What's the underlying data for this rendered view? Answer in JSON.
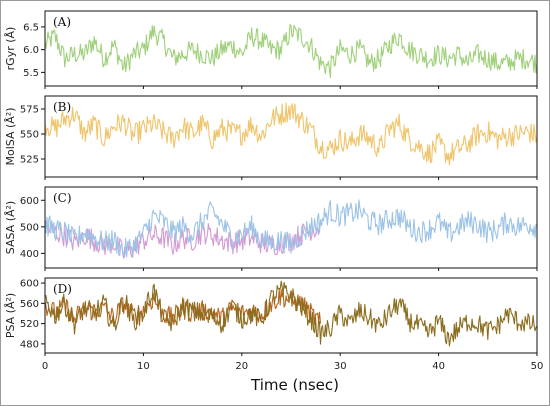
{
  "chart_data": [
    {
      "type": "line",
      "panel_label": "(A)",
      "ylabel": "rGyr (Å)",
      "yticks": [
        "5.5",
        "6.0",
        "6.5"
      ],
      "ylim": [
        5.2,
        6.85
      ],
      "xlim": [
        0,
        50
      ],
      "series": [
        {
          "color": "#9fd07a",
          "x": [
            0,
            1,
            2,
            3,
            4,
            5,
            6,
            7,
            8,
            9,
            10,
            11,
            12,
            13,
            14,
            15,
            16,
            17,
            18,
            19,
            20,
            21,
            22,
            23,
            24,
            25,
            26,
            27,
            28,
            29,
            30,
            31,
            32,
            33,
            34,
            35,
            36,
            37,
            38,
            39,
            40,
            41,
            42,
            43,
            44,
            45,
            46,
            47,
            48,
            49,
            50
          ],
          "y": [
            6.1,
            6.3,
            5.8,
            5.9,
            5.9,
            6.2,
            5.8,
            6.1,
            5.6,
            5.9,
            6.0,
            6.4,
            6.2,
            5.8,
            5.9,
            6.0,
            5.9,
            5.8,
            6.0,
            6.1,
            5.9,
            6.3,
            6.2,
            6.0,
            6.0,
            6.4,
            6.3,
            6.1,
            5.7,
            5.6,
            6.0,
            5.9,
            6.0,
            5.7,
            5.8,
            6.1,
            6.3,
            6.0,
            5.9,
            5.8,
            5.9,
            5.8,
            5.9,
            5.7,
            5.9,
            5.8,
            5.7,
            5.7,
            5.8,
            5.8,
            5.7
          ]
        }
      ]
    },
    {
      "type": "line",
      "panel_label": "(B)",
      "ylabel": "MolSA (Å²)",
      "yticks": [
        "525",
        "550",
        "575"
      ],
      "ylim": [
        507,
        588
      ],
      "xlim": [
        0,
        50
      ],
      "series": [
        {
          "color": "#f0c46a",
          "x": [
            0,
            1,
            2,
            3,
            4,
            5,
            6,
            7,
            8,
            9,
            10,
            11,
            12,
            13,
            14,
            15,
            16,
            17,
            18,
            19,
            20,
            21,
            22,
            23,
            24,
            25,
            26,
            27,
            28,
            29,
            30,
            31,
            32,
            33,
            34,
            35,
            36,
            37,
            38,
            39,
            40,
            41,
            42,
            43,
            44,
            45,
            46,
            47,
            48,
            49,
            50
          ],
          "y": [
            560,
            555,
            565,
            570,
            550,
            560,
            545,
            558,
            562,
            548,
            555,
            560,
            552,
            545,
            558,
            550,
            560,
            545,
            555,
            552,
            550,
            560,
            548,
            565,
            570,
            575,
            565,
            555,
            538,
            535,
            545,
            540,
            550,
            545,
            535,
            555,
            560,
            545,
            538,
            530,
            540,
            528,
            535,
            540,
            550,
            552,
            545,
            548,
            550,
            552,
            548
          ]
        }
      ]
    },
    {
      "type": "line",
      "panel_label": "(C)",
      "ylabel": "SASA (Å²)",
      "yticks": [
        "400",
        "500",
        "600"
      ],
      "ylim": [
        345,
        650
      ],
      "xlim": [
        0,
        50
      ],
      "series": [
        {
          "color": "#d49ad6",
          "x": [
            0,
            1,
            2,
            3,
            4,
            5,
            6,
            7,
            8,
            9,
            10,
            11,
            12,
            13,
            14,
            15,
            16,
            17,
            18,
            19,
            20,
            21,
            22,
            23,
            24,
            25,
            26,
            27,
            28
          ],
          "y": [
            500,
            480,
            470,
            440,
            470,
            450,
            430,
            440,
            400,
            420,
            450,
            470,
            460,
            430,
            460,
            450,
            480,
            470,
            450,
            440,
            450,
            460,
            440,
            430,
            440,
            450,
            470,
            490,
            500
          ]
        },
        {
          "color": "#9cc3e6",
          "x": [
            0,
            1,
            2,
            3,
            4,
            5,
            6,
            7,
            8,
            9,
            10,
            11,
            12,
            13,
            14,
            15,
            16,
            17,
            18,
            19,
            20,
            21,
            22,
            23,
            24,
            25,
            26,
            27,
            28,
            29,
            30,
            31,
            32,
            33,
            34,
            35,
            36,
            37,
            38,
            39,
            40,
            41,
            42,
            43,
            44,
            45,
            46,
            47,
            48,
            49,
            50
          ],
          "y": [
            510,
            490,
            480,
            450,
            480,
            460,
            440,
            450,
            410,
            430,
            470,
            540,
            520,
            480,
            500,
            470,
            520,
            560,
            510,
            460,
            470,
            500,
            450,
            440,
            450,
            430,
            470,
            500,
            520,
            560,
            540,
            550,
            560,
            520,
            510,
            530,
            540,
            500,
            480,
            490,
            520,
            470,
            500,
            520,
            510,
            480,
            490,
            520,
            500,
            510,
            500
          ]
        }
      ]
    },
    {
      "type": "line",
      "panel_label": "(D)",
      "ylabel": "PSA (Å²)",
      "yticks": [
        "480",
        "520",
        "560",
        "600"
      ],
      "ylim": [
        462,
        610
      ],
      "xlim": [
        0,
        50
      ],
      "series": [
        {
          "color": "#b5651d",
          "x": [
            0,
            1,
            2,
            3,
            4,
            5,
            6,
            7,
            8,
            9,
            10,
            11,
            12,
            13,
            14,
            15,
            16,
            17,
            18,
            19,
            20,
            21,
            22,
            23,
            24,
            25,
            26,
            27,
            28
          ],
          "y": [
            560,
            540,
            555,
            530,
            548,
            545,
            550,
            530,
            560,
            535,
            545,
            570,
            540,
            530,
            550,
            540,
            545,
            540,
            530,
            550,
            540,
            545,
            538,
            560,
            575,
            565,
            560,
            540,
            520
          ]
        },
        {
          "color": "#8a6d1e",
          "x": [
            0,
            1,
            2,
            3,
            4,
            5,
            6,
            7,
            8,
            9,
            10,
            11,
            12,
            13,
            14,
            15,
            16,
            17,
            18,
            19,
            20,
            21,
            22,
            23,
            24,
            25,
            26,
            27,
            28,
            29,
            30,
            31,
            32,
            33,
            34,
            35,
            36,
            37,
            38,
            39,
            40,
            41,
            42,
            43,
            44,
            45,
            46,
            47,
            48,
            49,
            50
          ],
          "y": [
            570,
            535,
            560,
            520,
            550,
            540,
            560,
            510,
            570,
            525,
            540,
            590,
            530,
            520,
            555,
            545,
            540,
            535,
            520,
            555,
            530,
            540,
            525,
            570,
            585,
            575,
            555,
            530,
            500,
            510,
            540,
            520,
            545,
            530,
            515,
            540,
            560,
            525,
            515,
            500,
            525,
            490,
            510,
            525,
            520,
            505,
            515,
            540,
            525,
            520,
            515
          ]
        }
      ]
    }
  ],
  "x_axis": {
    "label": "Time (nsec)",
    "ticks": [
      "0",
      "10",
      "20",
      "30",
      "40",
      "50"
    ],
    "range": [
      0,
      50
    ]
  }
}
